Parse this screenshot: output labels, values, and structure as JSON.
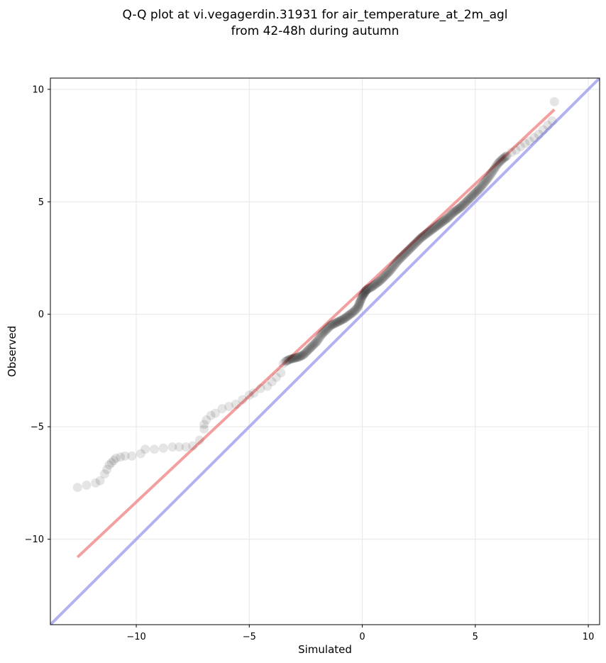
{
  "chart_data": {
    "type": "scatter",
    "title_lines": [
      "Q-Q plot at vi.vegagerdin.31931 for air_temperature_at_2m_agl",
      "from 42-48h during autumn"
    ],
    "xlabel": "Simulated",
    "ylabel": "Observed",
    "xlim": [
      -13.8,
      10.5
    ],
    "ylim": [
      -13.8,
      10.5
    ],
    "xticks": [
      -10,
      -5,
      0,
      5,
      10
    ],
    "yticks": [
      -10,
      -5,
      0,
      5,
      10
    ],
    "xtick_labels": [
      "−10",
      "−5",
      "0",
      "5",
      "10"
    ],
    "ytick_labels": [
      "−10",
      "−5",
      "0",
      "5",
      "10"
    ],
    "grid": true,
    "series": [
      {
        "marker": "circle",
        "color": "#000000",
        "x": [
          -12.6,
          -12.2,
          -11.8,
          -11.6,
          -11.4,
          -11.3,
          -11.2,
          -11.1,
          -11.0,
          -10.9,
          -10.7,
          -10.5,
          -10.2,
          -9.8,
          -9.6,
          -9.2,
          -8.8,
          -8.4,
          -8.1,
          -7.8,
          -7.5,
          -7.2,
          -7.0,
          -7.0,
          -6.9,
          -6.7,
          -6.5,
          -6.2,
          -5.9,
          -5.6,
          -5.3,
          -5.0,
          -4.8,
          -4.5,
          -4.2,
          -4.0,
          -3.8,
          -3.6,
          -3.5,
          -3.4,
          -3.2,
          -3.0,
          -2.8,
          -2.6,
          -2.4,
          -2.2,
          -2.0,
          -1.8,
          -1.6,
          -1.4,
          -1.2,
          -1.0,
          -0.8,
          -0.6,
          -0.4,
          -0.2,
          -0.1,
          0.0,
          0.1,
          0.2,
          0.4,
          0.6,
          0.8,
          1.0,
          1.2,
          1.4,
          1.6,
          1.8,
          2.0,
          2.2,
          2.4,
          2.6,
          2.8,
          3.0,
          3.2,
          3.4,
          3.6,
          3.8,
          4.0,
          4.2,
          4.4,
          4.6,
          4.8,
          5.0,
          5.2,
          5.4,
          5.6,
          5.8,
          6.0,
          6.2,
          6.4,
          6.6,
          6.8,
          7.0,
          7.2,
          7.4,
          7.6,
          7.8,
          8.0,
          8.2,
          8.4,
          8.5
        ],
        "y": [
          -7.7,
          -7.6,
          -7.5,
          -7.4,
          -7.1,
          -6.9,
          -6.7,
          -6.6,
          -6.5,
          -6.4,
          -6.35,
          -6.3,
          -6.3,
          -6.2,
          -6.0,
          -6.0,
          -5.95,
          -5.9,
          -5.9,
          -5.9,
          -5.85,
          -5.6,
          -5.1,
          -4.9,
          -4.7,
          -4.5,
          -4.4,
          -4.2,
          -4.1,
          -4.0,
          -3.8,
          -3.6,
          -3.5,
          -3.3,
          -3.2,
          -3.0,
          -2.8,
          -2.6,
          -2.2,
          -2.1,
          -2.0,
          -1.95,
          -1.9,
          -1.8,
          -1.6,
          -1.4,
          -1.2,
          -0.9,
          -0.7,
          -0.5,
          -0.4,
          -0.3,
          -0.2,
          -0.05,
          0.1,
          0.3,
          0.55,
          0.8,
          0.95,
          1.1,
          1.2,
          1.35,
          1.5,
          1.7,
          1.9,
          2.15,
          2.4,
          2.6,
          2.8,
          3.0,
          3.2,
          3.4,
          3.55,
          3.7,
          3.85,
          4.0,
          4.15,
          4.3,
          4.5,
          4.65,
          4.8,
          5.0,
          5.2,
          5.4,
          5.6,
          5.85,
          6.1,
          6.4,
          6.7,
          6.9,
          7.05,
          7.2,
          7.3,
          7.45,
          7.6,
          7.7,
          7.85,
          8.0,
          8.2,
          8.4,
          8.6,
          9.45
        ]
      }
    ],
    "lines": [
      {
        "kind": "fit",
        "color": "#f08080",
        "x": [
          -12.6,
          8.5
        ],
        "y": [
          -10.8,
          9.1
        ]
      },
      {
        "kind": "identity",
        "color": "#9999ee",
        "x": [
          -13.8,
          10.5
        ],
        "y": [
          -13.8,
          10.5
        ]
      }
    ]
  }
}
